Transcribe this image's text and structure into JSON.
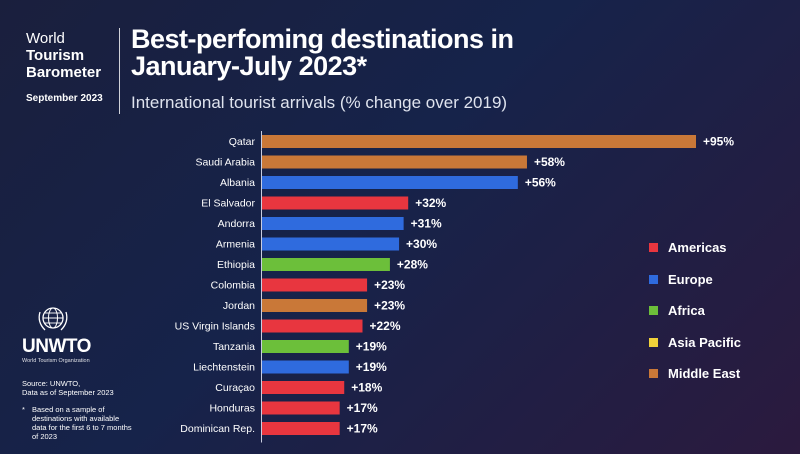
{
  "brand": {
    "line1": "World",
    "line2": "Tourism",
    "line3": "Barometer",
    "date": "September 2023"
  },
  "title_line1": "Best-perfoming destinations in",
  "title_line2": "January-July 2023*",
  "subtitle": "International tourist arrivals (% change over 2019)",
  "logo": {
    "name": "UNWTO",
    "org": "World Tourism Organization",
    "icon": "globe-laurel-icon"
  },
  "source": {
    "line1": "Source: UNWTO,",
    "line2": "Data as of September 2023"
  },
  "note": {
    "star": "*",
    "text": "Based on a sample of destinations with available data for the first 6 to 7 months of 2023"
  },
  "colors": {
    "Americas": "#e8363f",
    "Europe": "#2f6bde",
    "Africa": "#6cbf3a",
    "Asia Pacific": "#f0d23a",
    "Middle East": "#c97838"
  },
  "legend": [
    "Americas",
    "Europe",
    "Africa",
    "Asia Pacific",
    "Middle East"
  ],
  "chart_data": {
    "type": "bar",
    "orientation": "horizontal",
    "categories": [
      "Qatar",
      "Saudi Arabia",
      "Albania",
      "El Salvador",
      "Andorra",
      "Armenia",
      "Ethiopia",
      "Colombia",
      "Jordan",
      "US Virgin Islands",
      "Tanzania",
      "Liechtenstein",
      "Curaçao",
      "Honduras",
      "Dominican Rep."
    ],
    "values": [
      95,
      58,
      56,
      32,
      31,
      30,
      28,
      23,
      23,
      22,
      19,
      19,
      18,
      17,
      17
    ],
    "labels": [
      "+95%",
      "+58%",
      "+56%",
      "+32%",
      "+31%",
      "+30%",
      "+28%",
      "+23%",
      "+23%",
      "+22%",
      "+19%",
      "+19%",
      "+18%",
      "+17%",
      "+17%"
    ],
    "regions": [
      "Middle East",
      "Middle East",
      "Europe",
      "Americas",
      "Europe",
      "Europe",
      "Africa",
      "Americas",
      "Middle East",
      "Americas",
      "Africa",
      "Europe",
      "Americas",
      "Americas",
      "Americas"
    ],
    "xlim": [
      0,
      95
    ],
    "grid": false,
    "legend_position": "right"
  }
}
